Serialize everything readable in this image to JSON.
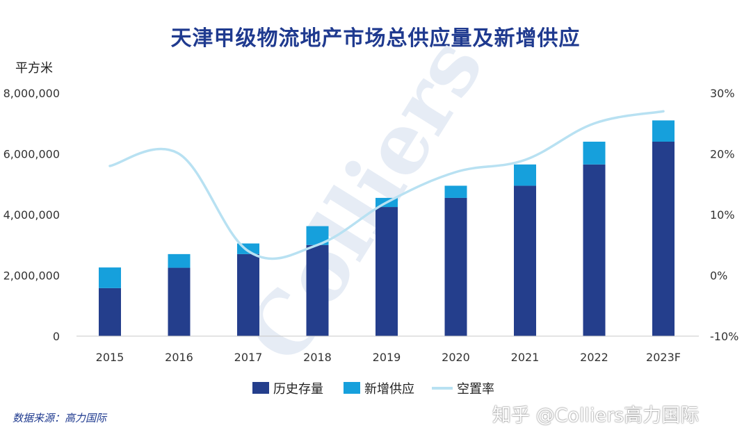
{
  "chart_data": {
    "type": "bar",
    "stacked": true,
    "title": "天津甲级物流地产市场总供应量及新增供应",
    "y_unit_label": "平方米",
    "categories": [
      "2015",
      "2016",
      "2017",
      "2018",
      "2019",
      "2020",
      "2021",
      "2022",
      "2023F"
    ],
    "series": [
      {
        "name": "历史存量",
        "type": "bar",
        "axis": "left",
        "color": "#243e8c",
        "values": [
          1580000,
          2250000,
          2700000,
          3000000,
          4250000,
          4550000,
          4950000,
          5650000,
          6400000
        ]
      },
      {
        "name": "新增供应",
        "type": "bar",
        "axis": "left",
        "color": "#16a0dc",
        "values": [
          680000,
          450000,
          350000,
          620000,
          300000,
          400000,
          700000,
          750000,
          700000
        ]
      },
      {
        "name": "空置率",
        "type": "line",
        "axis": "right",
        "color": "#b8e1f2",
        "values": [
          18,
          20,
          4,
          5,
          12,
          17,
          19,
          25,
          27
        ]
      }
    ],
    "y_left": {
      "min": 0,
      "max": 8000000,
      "ticks": [
        "0",
        "2,000,000",
        "4,000,000",
        "6,000,000",
        "8,000,000"
      ]
    },
    "y_right": {
      "min": -10,
      "max": 30,
      "ticks": [
        "-10%",
        "0%",
        "10%",
        "20%",
        "30%"
      ]
    },
    "grid": false,
    "legend_position": "bottom"
  },
  "watermark_text": "Colliers",
  "source_note": "数据来源：高力国际",
  "platform_watermark": "知乎 @Colliers高力国际"
}
